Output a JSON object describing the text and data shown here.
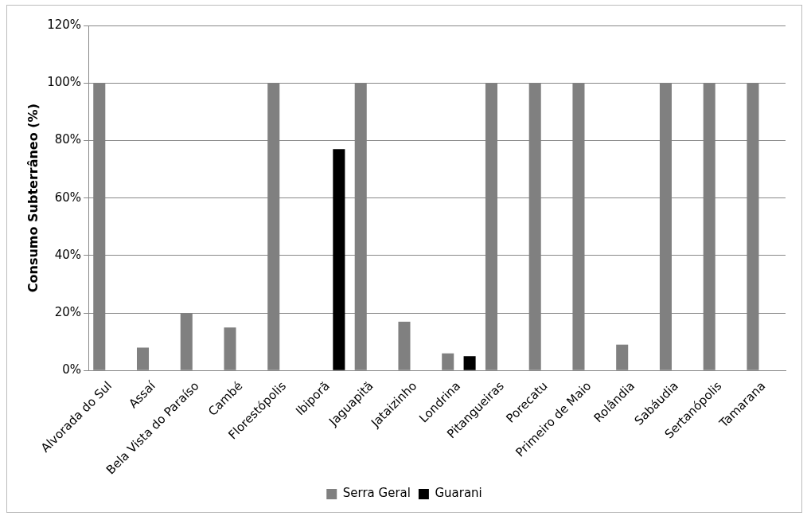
{
  "chart_data": {
    "type": "bar",
    "ylabel": "Consumo Subterrâneo (%)",
    "categories": [
      "Alvorada do Sul",
      "Assaí",
      "Bela Vista do Paraíso",
      "Cambé",
      "Florestópolis",
      "Ibiporã",
      "Jaguapitã",
      "Jataizinho",
      "Londrina",
      "Pitangueiras",
      "Porecatu",
      "Primeiro de Maio",
      "Rolândia",
      "Sabáudia",
      "Sertanópolis",
      "Tamarana"
    ],
    "series": [
      {
        "name": "Serra Geral",
        "color": "#808080",
        "values": [
          100,
          8,
          20,
          15,
          100,
          0,
          100,
          17,
          6,
          100,
          100,
          100,
          9,
          100,
          100,
          100
        ]
      },
      {
        "name": "Guarani",
        "color": "#000000",
        "values": [
          0,
          0,
          0,
          0,
          0,
          77,
          0,
          0,
          5,
          0,
          0,
          0,
          0,
          0,
          0,
          0
        ]
      }
    ],
    "ylim": [
      0,
      120
    ],
    "yticks": [
      {
        "value": 0,
        "label": "0%"
      },
      {
        "value": 20,
        "label": "20%"
      },
      {
        "value": 40,
        "label": "40%"
      },
      {
        "value": 60,
        "label": "60%"
      },
      {
        "value": 80,
        "label": "80%"
      },
      {
        "value": 100,
        "label": "100%"
      },
      {
        "value": 120,
        "label": "120%"
      }
    ],
    "grid": "y",
    "legend": "bottom"
  }
}
